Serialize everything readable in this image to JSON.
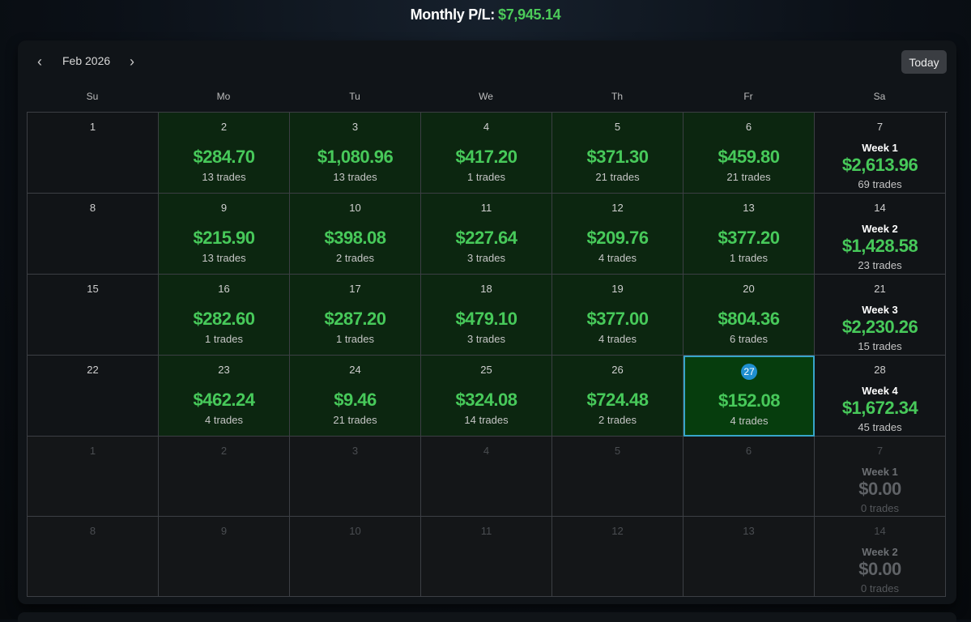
{
  "header": {
    "label": "Monthly P/L:",
    "value": "$7,945.14"
  },
  "toolbar": {
    "prev": "‹",
    "next": "›",
    "month": "Feb 2026",
    "today": "Today"
  },
  "dow": [
    "Su",
    "Mo",
    "Tu",
    "We",
    "Th",
    "Fr",
    "Sa"
  ],
  "rows": [
    {
      "days": [
        {
          "day": "1",
          "type": "plain"
        },
        {
          "day": "2",
          "type": "green",
          "amount": "$284.70",
          "trades": "13 trades"
        },
        {
          "day": "3",
          "type": "green",
          "amount": "$1,080.96",
          "trades": "13 trades"
        },
        {
          "day": "4",
          "type": "green",
          "amount": "$417.20",
          "trades": "1 trades"
        },
        {
          "day": "5",
          "type": "green",
          "amount": "$371.30",
          "trades": "21 trades"
        },
        {
          "day": "6",
          "type": "green",
          "amount": "$459.80",
          "trades": "21 trades"
        },
        {
          "day": "7",
          "type": "week",
          "week": "Week 1",
          "amount": "$2,613.96",
          "trades": "69 trades"
        }
      ]
    },
    {
      "days": [
        {
          "day": "8",
          "type": "plain"
        },
        {
          "day": "9",
          "type": "green",
          "amount": "$215.90",
          "trades": "13 trades"
        },
        {
          "day": "10",
          "type": "green",
          "amount": "$398.08",
          "trades": "2 trades"
        },
        {
          "day": "11",
          "type": "green",
          "amount": "$227.64",
          "trades": "3 trades"
        },
        {
          "day": "12",
          "type": "green",
          "amount": "$209.76",
          "trades": "4 trades"
        },
        {
          "day": "13",
          "type": "green",
          "amount": "$377.20",
          "trades": "1 trades"
        },
        {
          "day": "14",
          "type": "week",
          "week": "Week 2",
          "amount": "$1,428.58",
          "trades": "23 trades"
        }
      ]
    },
    {
      "days": [
        {
          "day": "15",
          "type": "plain"
        },
        {
          "day": "16",
          "type": "green",
          "amount": "$282.60",
          "trades": "1 trades"
        },
        {
          "day": "17",
          "type": "green",
          "amount": "$287.20",
          "trades": "1 trades"
        },
        {
          "day": "18",
          "type": "green",
          "amount": "$479.10",
          "trades": "3 trades"
        },
        {
          "day": "19",
          "type": "green",
          "amount": "$377.00",
          "trades": "4 trades"
        },
        {
          "day": "20",
          "type": "green",
          "amount": "$804.36",
          "trades": "6 trades"
        },
        {
          "day": "21",
          "type": "week",
          "week": "Week 3",
          "amount": "$2,230.26",
          "trades": "15 trades"
        }
      ]
    },
    {
      "days": [
        {
          "day": "22",
          "type": "plain"
        },
        {
          "day": "23",
          "type": "green",
          "amount": "$462.24",
          "trades": "4 trades"
        },
        {
          "day": "24",
          "type": "green",
          "amount": "$9.46",
          "trades": "21 trades"
        },
        {
          "day": "25",
          "type": "green",
          "amount": "$324.08",
          "trades": "14 trades"
        },
        {
          "day": "26",
          "type": "green",
          "amount": "$724.48",
          "trades": "2 trades"
        },
        {
          "day": "27",
          "type": "today",
          "amount": "$152.08",
          "trades": "4 trades"
        },
        {
          "day": "28",
          "type": "week",
          "week": "Week 4",
          "amount": "$1,672.34",
          "trades": "45 trades"
        }
      ]
    },
    {
      "days": [
        {
          "day": "1",
          "type": "out"
        },
        {
          "day": "2",
          "type": "out"
        },
        {
          "day": "3",
          "type": "out"
        },
        {
          "day": "4",
          "type": "out"
        },
        {
          "day": "5",
          "type": "out"
        },
        {
          "day": "6",
          "type": "out"
        },
        {
          "day": "7",
          "type": "week-out",
          "week": "Week 1",
          "amount": "$0.00",
          "trades": "0 trades"
        }
      ]
    },
    {
      "days": [
        {
          "day": "8",
          "type": "out"
        },
        {
          "day": "9",
          "type": "out"
        },
        {
          "day": "10",
          "type": "out"
        },
        {
          "day": "11",
          "type": "out"
        },
        {
          "day": "12",
          "type": "out"
        },
        {
          "day": "13",
          "type": "out"
        },
        {
          "day": "14",
          "type": "week-out",
          "week": "Week 2",
          "amount": "$0.00",
          "trades": "0 trades"
        }
      ]
    }
  ]
}
